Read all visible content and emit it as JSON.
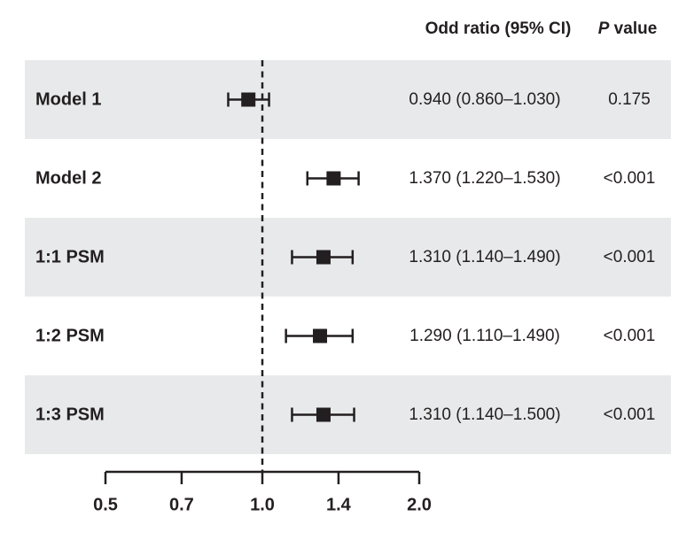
{
  "figure": {
    "header": {
      "or_column": "Odd ratio (95% CI)",
      "p_column_italic": "P",
      "p_column_rest": " value"
    }
  },
  "colors": {
    "band": "#e8e9ea",
    "ink": "#231f20",
    "background": "#ffffff"
  },
  "chart_data": {
    "type": "forest",
    "title": "",
    "xlabel": "",
    "x_scale": "log",
    "x_range": [
      0.5,
      2.0
    ],
    "x_ticks": [
      "0.5",
      "0.7",
      "1.0",
      "1.4",
      "2.0"
    ],
    "x_tick_values": [
      0.5,
      0.7,
      1.0,
      1.4,
      2.0
    ],
    "reference_line": 1.0,
    "grid": false,
    "legend": "none",
    "columns": [
      "Odd ratio (95% CI)",
      "P value"
    ],
    "rows": [
      {
        "label": "Model 1",
        "or": 0.94,
        "ci_low": 0.86,
        "ci_high": 1.03,
        "or_ci_text": "0.940 (0.860–1.030)",
        "p_value": "0.175",
        "shaded": true
      },
      {
        "label": "Model 2",
        "or": 1.37,
        "ci_low": 1.22,
        "ci_high": 1.53,
        "or_ci_text": "1.370 (1.220–1.530)",
        "p_value": "<0.001",
        "shaded": false
      },
      {
        "label": "1:1 PSM",
        "or": 1.31,
        "ci_low": 1.14,
        "ci_high": 1.49,
        "or_ci_text": "1.310 (1.140–1.490)",
        "p_value": "<0.001",
        "shaded": true
      },
      {
        "label": "1:2 PSM",
        "or": 1.29,
        "ci_low": 1.11,
        "ci_high": 1.49,
        "or_ci_text": "1.290 (1.110–1.490)",
        "p_value": "<0.001",
        "shaded": false
      },
      {
        "label": "1:3 PSM",
        "or": 1.31,
        "ci_low": 1.14,
        "ci_high": 1.5,
        "or_ci_text": "1.310 (1.140–1.500)",
        "p_value": "<0.001",
        "shaded": true
      }
    ]
  }
}
